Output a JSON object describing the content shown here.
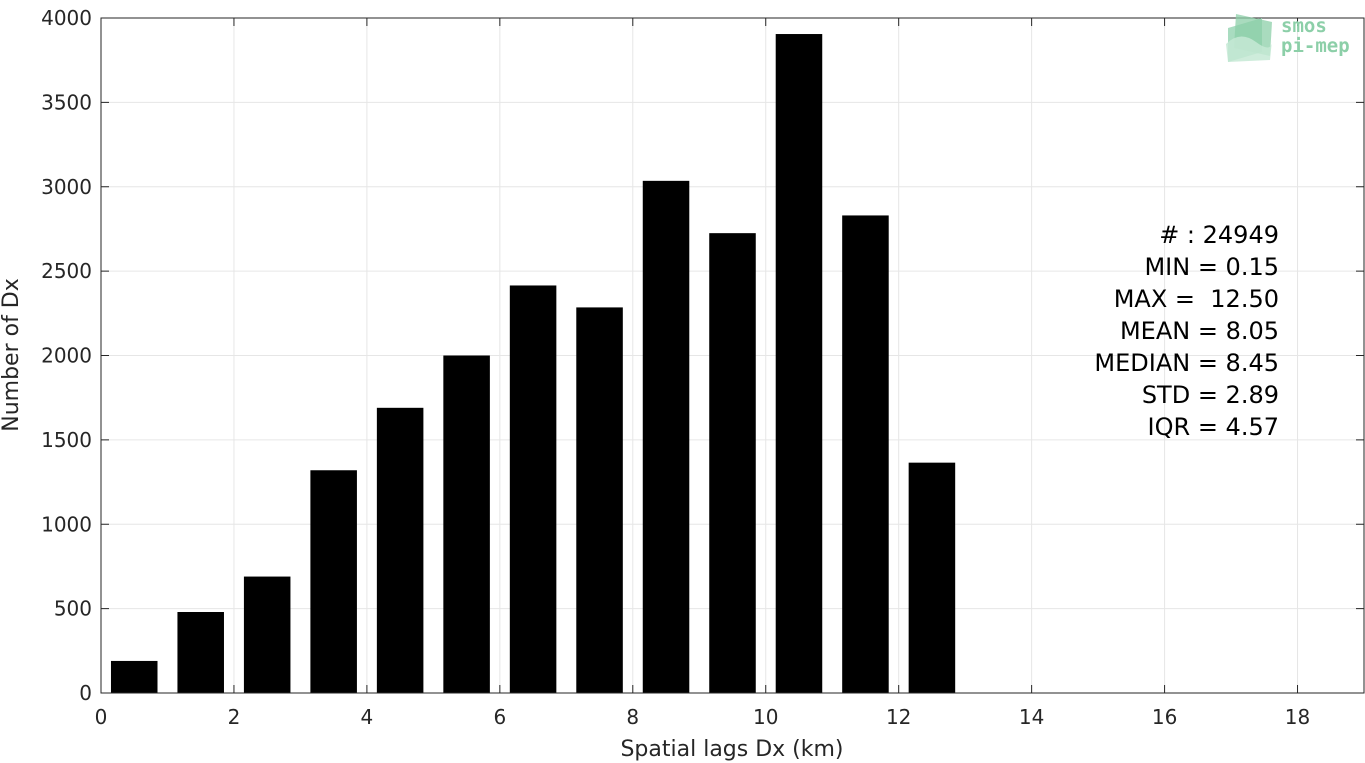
{
  "chart_data": {
    "type": "bar",
    "x": [
      0.5,
      1.5,
      2.5,
      3.5,
      4.5,
      5.5,
      6.5,
      7.5,
      8.5,
      9.5,
      10.5,
      11.5,
      12.5
    ],
    "values": [
      190,
      480,
      690,
      1320,
      1690,
      2000,
      2415,
      2285,
      3035,
      2725,
      3905,
      2830,
      1365
    ],
    "bar_width": 0.7,
    "xlabel": "Spatial lags Dx (km)",
    "ylabel": "Number of Dx",
    "xlim": [
      0,
      19
    ],
    "ylim": [
      0,
      4000
    ],
    "xticks": [
      0,
      2,
      4,
      6,
      8,
      10,
      12,
      14,
      16,
      18
    ],
    "yticks": [
      0,
      500,
      1000,
      1500,
      2000,
      2500,
      3000,
      3500,
      4000
    ],
    "grid": true,
    "bar_color": "#000000",
    "stats": [
      "# : 24949",
      "MIN = 0.15",
      "MAX =  12.50",
      "MEAN = 8.05",
      "MEDIAN = 8.45",
      "STD = 2.89",
      "IQR = 4.57"
    ]
  },
  "logo": {
    "line1": "smos",
    "line2": "pi-mep",
    "color": "#8ccfa8"
  }
}
